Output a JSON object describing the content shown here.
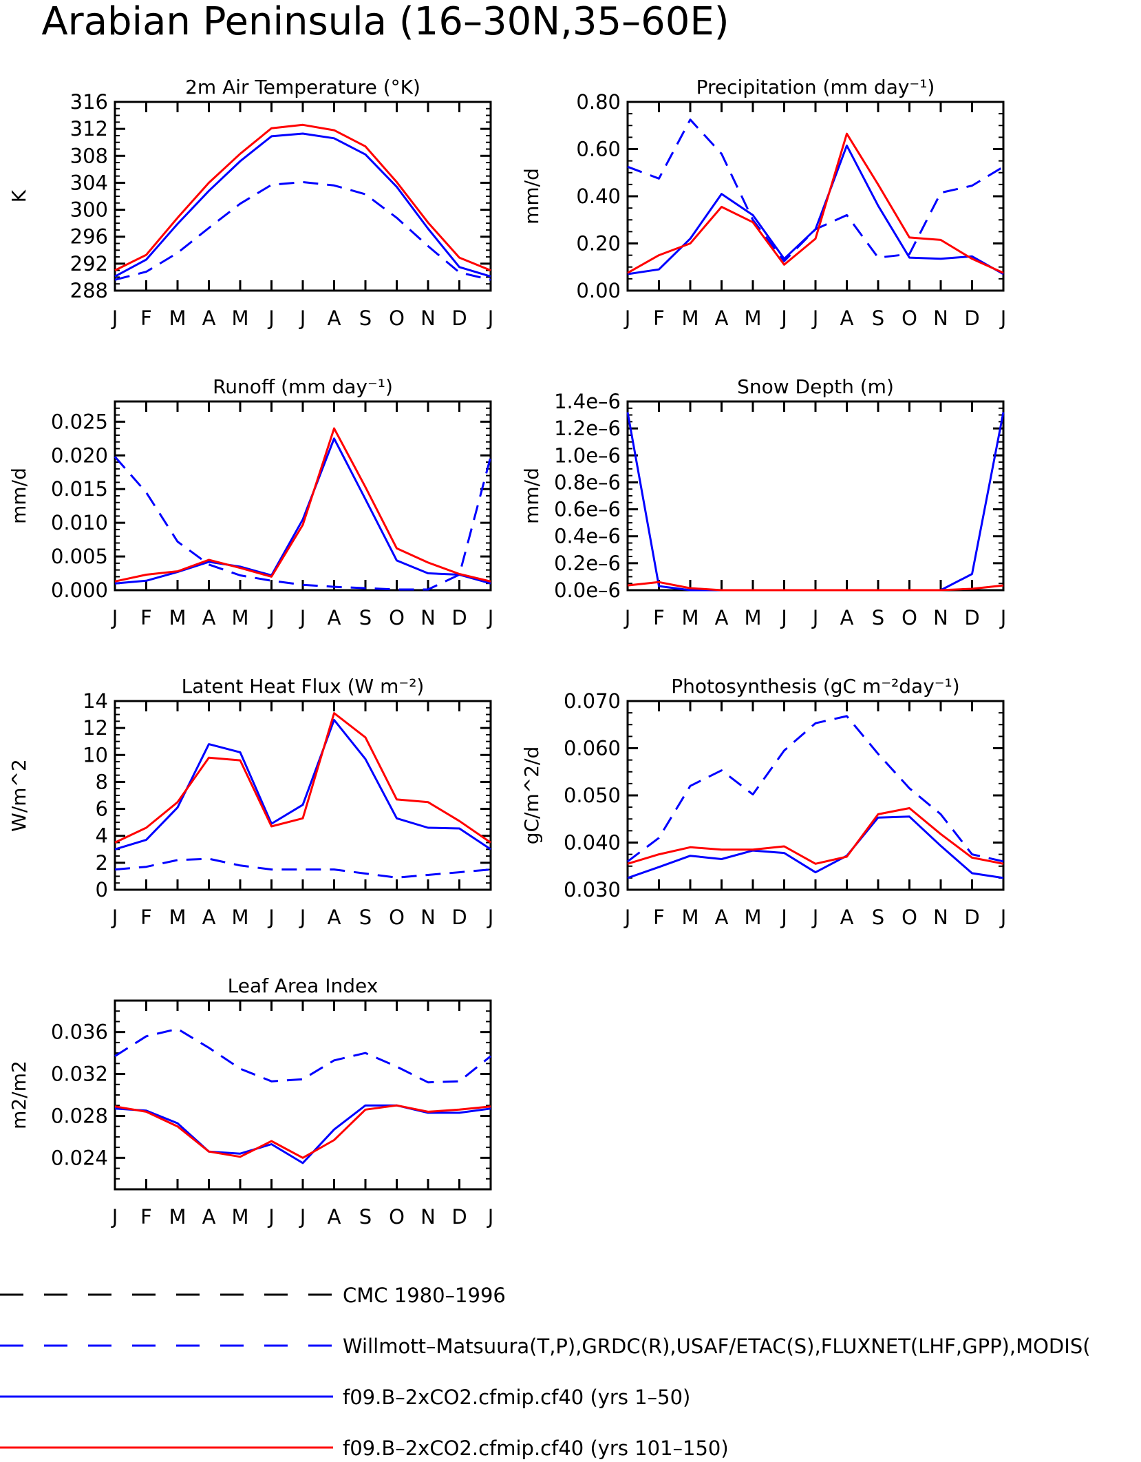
{
  "page": {
    "title": "Arabian Peninsula (16–30N,35–60E)"
  },
  "colors": {
    "axis": "#000000",
    "obs": "#0000ff",
    "model1": "#0000ff",
    "model2": "#ff0000",
    "cmc": "#000000"
  },
  "legend": [
    {
      "label": "CMC 1980–1996",
      "color": "#000000",
      "dash": true
    },
    {
      "label": "Willmott–Matsuura(T,P),GRDC(R),USAF/ETAC(S),FLUXNET(LHF,GPP),MODIS(",
      "color": "#0000ff",
      "dash": true
    },
    {
      "label": "f09.B–2xCO2.cfmip.cf40 (yrs 1–50)",
      "color": "#0000ff",
      "dash": false
    },
    {
      "label": "f09.B–2xCO2.cfmip.cf40 (yrs 101–150)",
      "color": "#ff0000",
      "dash": false
    }
  ],
  "chart_data": [
    {
      "type": "line",
      "title": "2m Air Temperature (°K)",
      "ylabel": "K",
      "ylim": [
        288,
        316
      ],
      "yticks": [
        288,
        292,
        296,
        300,
        304,
        308,
        312,
        316
      ],
      "yticklabels": [
        "288",
        "292",
        "296",
        "300",
        "304",
        "308",
        "312",
        "316"
      ],
      "yminor": 1,
      "categories": [
        "J",
        "F",
        "M",
        "A",
        "M",
        "J",
        "J",
        "A",
        "S",
        "O",
        "N",
        "D",
        "J"
      ],
      "series": [
        {
          "style": "obs",
          "values": [
            289.6,
            290.8,
            293.6,
            297.3,
            300.9,
            303.7,
            304.1,
            303.6,
            302.3,
            298.8,
            294.6,
            290.7,
            289.6
          ]
        },
        {
          "style": "model1",
          "values": [
            290.1,
            292.6,
            297.9,
            302.8,
            307.2,
            310.9,
            311.3,
            310.6,
            308.2,
            303.4,
            297.2,
            291.5,
            290.1
          ]
        },
        {
          "style": "model2",
          "values": [
            291.0,
            293.3,
            298.8,
            304.0,
            308.3,
            312.1,
            312.6,
            311.8,
            309.4,
            304.1,
            298.1,
            292.9,
            291.0
          ]
        }
      ]
    },
    {
      "type": "line",
      "title": "Precipitation (mm day⁻¹)",
      "ylabel": "mm/d",
      "ylim": [
        0,
        0.8
      ],
      "yticks": [
        0,
        0.2,
        0.4,
        0.6,
        0.8
      ],
      "yticklabels": [
        "0.00",
        "0.20",
        "0.40",
        "0.60",
        "0.80"
      ],
      "yminor": 0.05,
      "categories": [
        "J",
        "F",
        "M",
        "A",
        "M",
        "J",
        "J",
        "A",
        "S",
        "O",
        "N",
        "D",
        "J"
      ],
      "series": [
        {
          "style": "obs",
          "values": [
            0.525,
            0.475,
            0.725,
            0.58,
            0.3,
            0.125,
            0.26,
            0.32,
            0.14,
            0.155,
            0.415,
            0.445,
            0.525
          ]
        },
        {
          "style": "model1",
          "values": [
            0.07,
            0.09,
            0.22,
            0.41,
            0.32,
            0.135,
            0.26,
            0.615,
            0.36,
            0.14,
            0.135,
            0.145,
            0.07
          ]
        },
        {
          "style": "model2",
          "values": [
            0.075,
            0.15,
            0.2,
            0.355,
            0.29,
            0.11,
            0.22,
            0.665,
            0.45,
            0.225,
            0.215,
            0.135,
            0.075
          ]
        }
      ]
    },
    {
      "type": "line",
      "title": "Runoff (mm day⁻¹)",
      "ylabel": "mm/d",
      "ylim": [
        0,
        0.028
      ],
      "yticks": [
        0,
        0.005,
        0.01,
        0.015,
        0.02,
        0.025
      ],
      "yticklabels": [
        "0.000",
        "0.005",
        "0.010",
        "0.015",
        "0.020",
        "0.025"
      ],
      "yminor": 0.001,
      "categories": [
        "J",
        "F",
        "M",
        "A",
        "M",
        "J",
        "J",
        "A",
        "S",
        "O",
        "N",
        "D",
        "J"
      ],
      "series": [
        {
          "style": "obs",
          "values": [
            0.0198,
            0.0145,
            0.0072,
            0.0038,
            0.0022,
            0.0014,
            0.0008,
            0.0005,
            0.0003,
            0.0001,
            0.0001,
            0.0023,
            0.0198
          ]
        },
        {
          "style": "model1",
          "values": [
            0.001,
            0.0014,
            0.0027,
            0.0042,
            0.0035,
            0.0022,
            0.0105,
            0.0225,
            0.0135,
            0.0044,
            0.0025,
            0.0023,
            0.001
          ]
        },
        {
          "style": "model2",
          "values": [
            0.0013,
            0.0023,
            0.0028,
            0.0045,
            0.0033,
            0.002,
            0.0097,
            0.024,
            0.0153,
            0.0062,
            0.0041,
            0.0024,
            0.0013
          ]
        }
      ]
    },
    {
      "type": "line",
      "title": "Snow Depth (m)",
      "ylabel": "mm/d",
      "ylim": [
        0,
        1.4e-06
      ],
      "yticks": [
        0,
        2e-07,
        4e-07,
        6e-07,
        8e-07,
        1e-06,
        1.2e-06,
        1.4e-06
      ],
      "yticklabels": [
        "0.0e–6",
        "0.2e–6",
        "0.4e–6",
        "0.6e–6",
        "0.8e–6",
        "1.0e–6",
        "1.2e–6",
        "1.4e–6"
      ],
      "yminor": 5e-08,
      "categories": [
        "J",
        "F",
        "M",
        "A",
        "M",
        "J",
        "J",
        "A",
        "S",
        "O",
        "N",
        "D",
        "J"
      ],
      "series": [
        {
          "style": "model1",
          "values": [
            1.32e-06,
            3e-08,
            0,
            0,
            0,
            0,
            0,
            0,
            0,
            0,
            0,
            1.2e-07,
            1.32e-06
          ]
        },
        {
          "style": "model2",
          "values": [
            3.5e-08,
            6e-08,
            1.5e-08,
            0,
            0,
            0,
            0,
            0,
            0,
            0,
            0,
            1e-08,
            3.5e-08
          ]
        }
      ]
    },
    {
      "type": "line",
      "title": "Latent Heat Flux (W m⁻²)",
      "ylabel": "W/m^2",
      "ylim": [
        0,
        14
      ],
      "yticks": [
        0,
        2,
        4,
        6,
        8,
        10,
        12,
        14
      ],
      "yticklabels": [
        "0",
        "2",
        "4",
        "6",
        "8",
        "10",
        "12",
        "14"
      ],
      "yminor": 0.5,
      "categories": [
        "J",
        "F",
        "M",
        "A",
        "M",
        "J",
        "J",
        "A",
        "S",
        "O",
        "N",
        "D",
        "J"
      ],
      "series": [
        {
          "style": "obs",
          "values": [
            1.5,
            1.7,
            2.2,
            2.3,
            1.8,
            1.5,
            1.5,
            1.5,
            1.2,
            0.9,
            1.1,
            1.3,
            1.5
          ]
        },
        {
          "style": "model1",
          "values": [
            3.0,
            3.7,
            6.1,
            10.8,
            10.2,
            4.9,
            6.3,
            12.6,
            9.7,
            5.3,
            4.6,
            4.55,
            3.0
          ]
        },
        {
          "style": "model2",
          "values": [
            3.5,
            4.6,
            6.5,
            9.8,
            9.6,
            4.7,
            5.3,
            13.1,
            11.3,
            6.7,
            6.5,
            5.1,
            3.5
          ]
        }
      ]
    },
    {
      "type": "line",
      "title": "Photosynthesis (gC m⁻²day⁻¹)",
      "ylabel": "gC/m^2/d",
      "ylim": [
        0.03,
        0.07
      ],
      "yticks": [
        0.03,
        0.04,
        0.05,
        0.06,
        0.07
      ],
      "yticklabels": [
        "0.030",
        "0.040",
        "0.050",
        "0.060",
        "0.070"
      ],
      "yminor": 0.0025,
      "categories": [
        "J",
        "F",
        "M",
        "A",
        "M",
        "J",
        "J",
        "A",
        "S",
        "O",
        "N",
        "D",
        "J"
      ],
      "series": [
        {
          "style": "obs",
          "values": [
            0.036,
            0.041,
            0.052,
            0.0553,
            0.0502,
            0.0595,
            0.0653,
            0.0668,
            0.0588,
            0.0515,
            0.046,
            0.0375,
            0.036
          ]
        },
        {
          "style": "model1",
          "values": [
            0.0325,
            0.0348,
            0.0372,
            0.0365,
            0.0383,
            0.0378,
            0.0337,
            0.0372,
            0.0453,
            0.0455,
            0.0393,
            0.0335,
            0.0325
          ]
        },
        {
          "style": "model2",
          "values": [
            0.0355,
            0.0375,
            0.039,
            0.0385,
            0.0385,
            0.0392,
            0.0355,
            0.037,
            0.046,
            0.0473,
            0.0418,
            0.0368,
            0.0355
          ]
        }
      ]
    },
    {
      "type": "line",
      "title": "Leaf Area Index",
      "ylabel": "m2/m2",
      "ylim": [
        0.021,
        0.039
      ],
      "yticks": [
        0.024,
        0.028,
        0.032,
        0.036
      ],
      "yticklabels": [
        "0.024",
        "0.028",
        "0.032",
        "0.036"
      ],
      "yminor": 0.001,
      "categories": [
        "J",
        "F",
        "M",
        "A",
        "M",
        "J",
        "J",
        "A",
        "S",
        "O",
        "N",
        "D",
        "J"
      ],
      "series": [
        {
          "style": "obs",
          "values": [
            0.0337,
            0.0356,
            0.0363,
            0.0345,
            0.0325,
            0.0313,
            0.0315,
            0.0333,
            0.034,
            0.0327,
            0.0312,
            0.0313,
            0.0337
          ]
        },
        {
          "style": "model1",
          "values": [
            0.0287,
            0.0285,
            0.0273,
            0.0246,
            0.0244,
            0.0253,
            0.0235,
            0.0267,
            0.029,
            0.029,
            0.0283,
            0.0283,
            0.0287
          ]
        },
        {
          "style": "model2",
          "values": [
            0.0289,
            0.0284,
            0.027,
            0.0246,
            0.0241,
            0.0256,
            0.024,
            0.0257,
            0.0286,
            0.029,
            0.0284,
            0.0286,
            0.0289
          ]
        }
      ]
    }
  ]
}
